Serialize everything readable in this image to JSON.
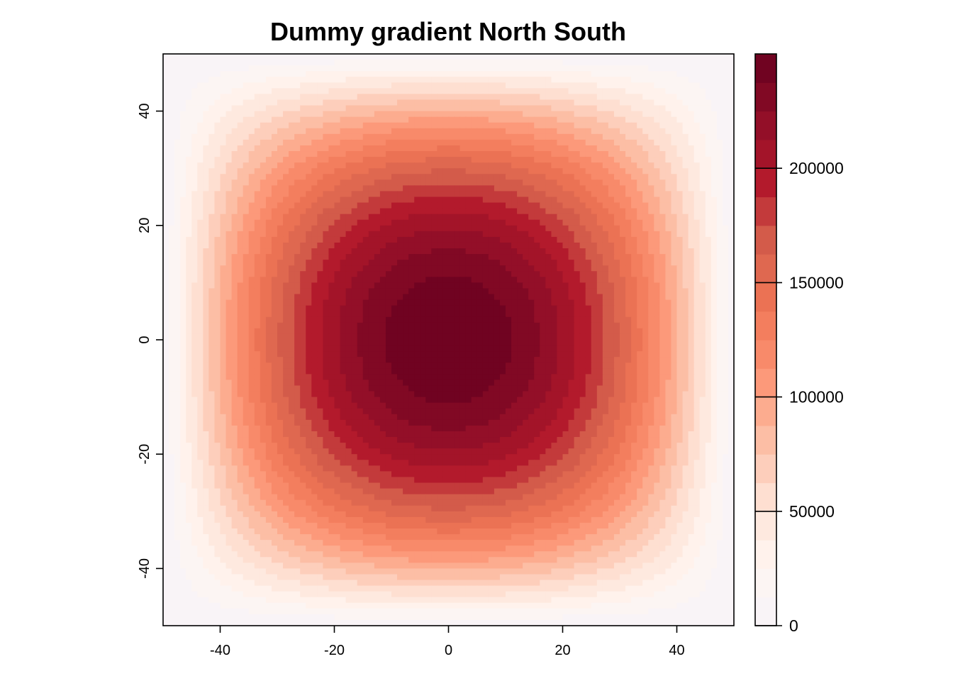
{
  "chart_data": {
    "type": "heatmap",
    "title": "Dummy gradient North South",
    "xlabel": "",
    "ylabel": "",
    "xlim": [
      -50,
      50
    ],
    "ylim": [
      -50,
      50
    ],
    "x_ticks": [
      -40,
      -20,
      0,
      20,
      40
    ],
    "y_ticks": [
      -40,
      -20,
      0,
      20,
      40
    ],
    "x_tick_labels": [
      "-40",
      "-20",
      "0",
      "20",
      "40"
    ],
    "y_tick_labels": [
      "-40",
      "-20",
      "0",
      "20",
      "40"
    ],
    "grid": false,
    "cells_per_side": 100,
    "surface": {
      "formula": "z = (2500 - x^2) * (2500 - y^2) / 25",
      "center_value": 250000,
      "edge_value": 0
    },
    "legend": {
      "placement": "right",
      "range": [
        0,
        250000
      ],
      "ticks": [
        0,
        50000,
        100000,
        150000,
        200000
      ],
      "tick_labels": [
        "0",
        "50000",
        "100000",
        "150000",
        "200000"
      ],
      "breaks_step": 12500
    },
    "palette": [
      "#F7F4F9",
      "#FFF5F0",
      "#FEE0D2",
      "#FCBBA1",
      "#FC9272",
      "#EF7656",
      "#D6604D",
      "#B2182B",
      "#8E0E27",
      "#67001F"
    ]
  }
}
